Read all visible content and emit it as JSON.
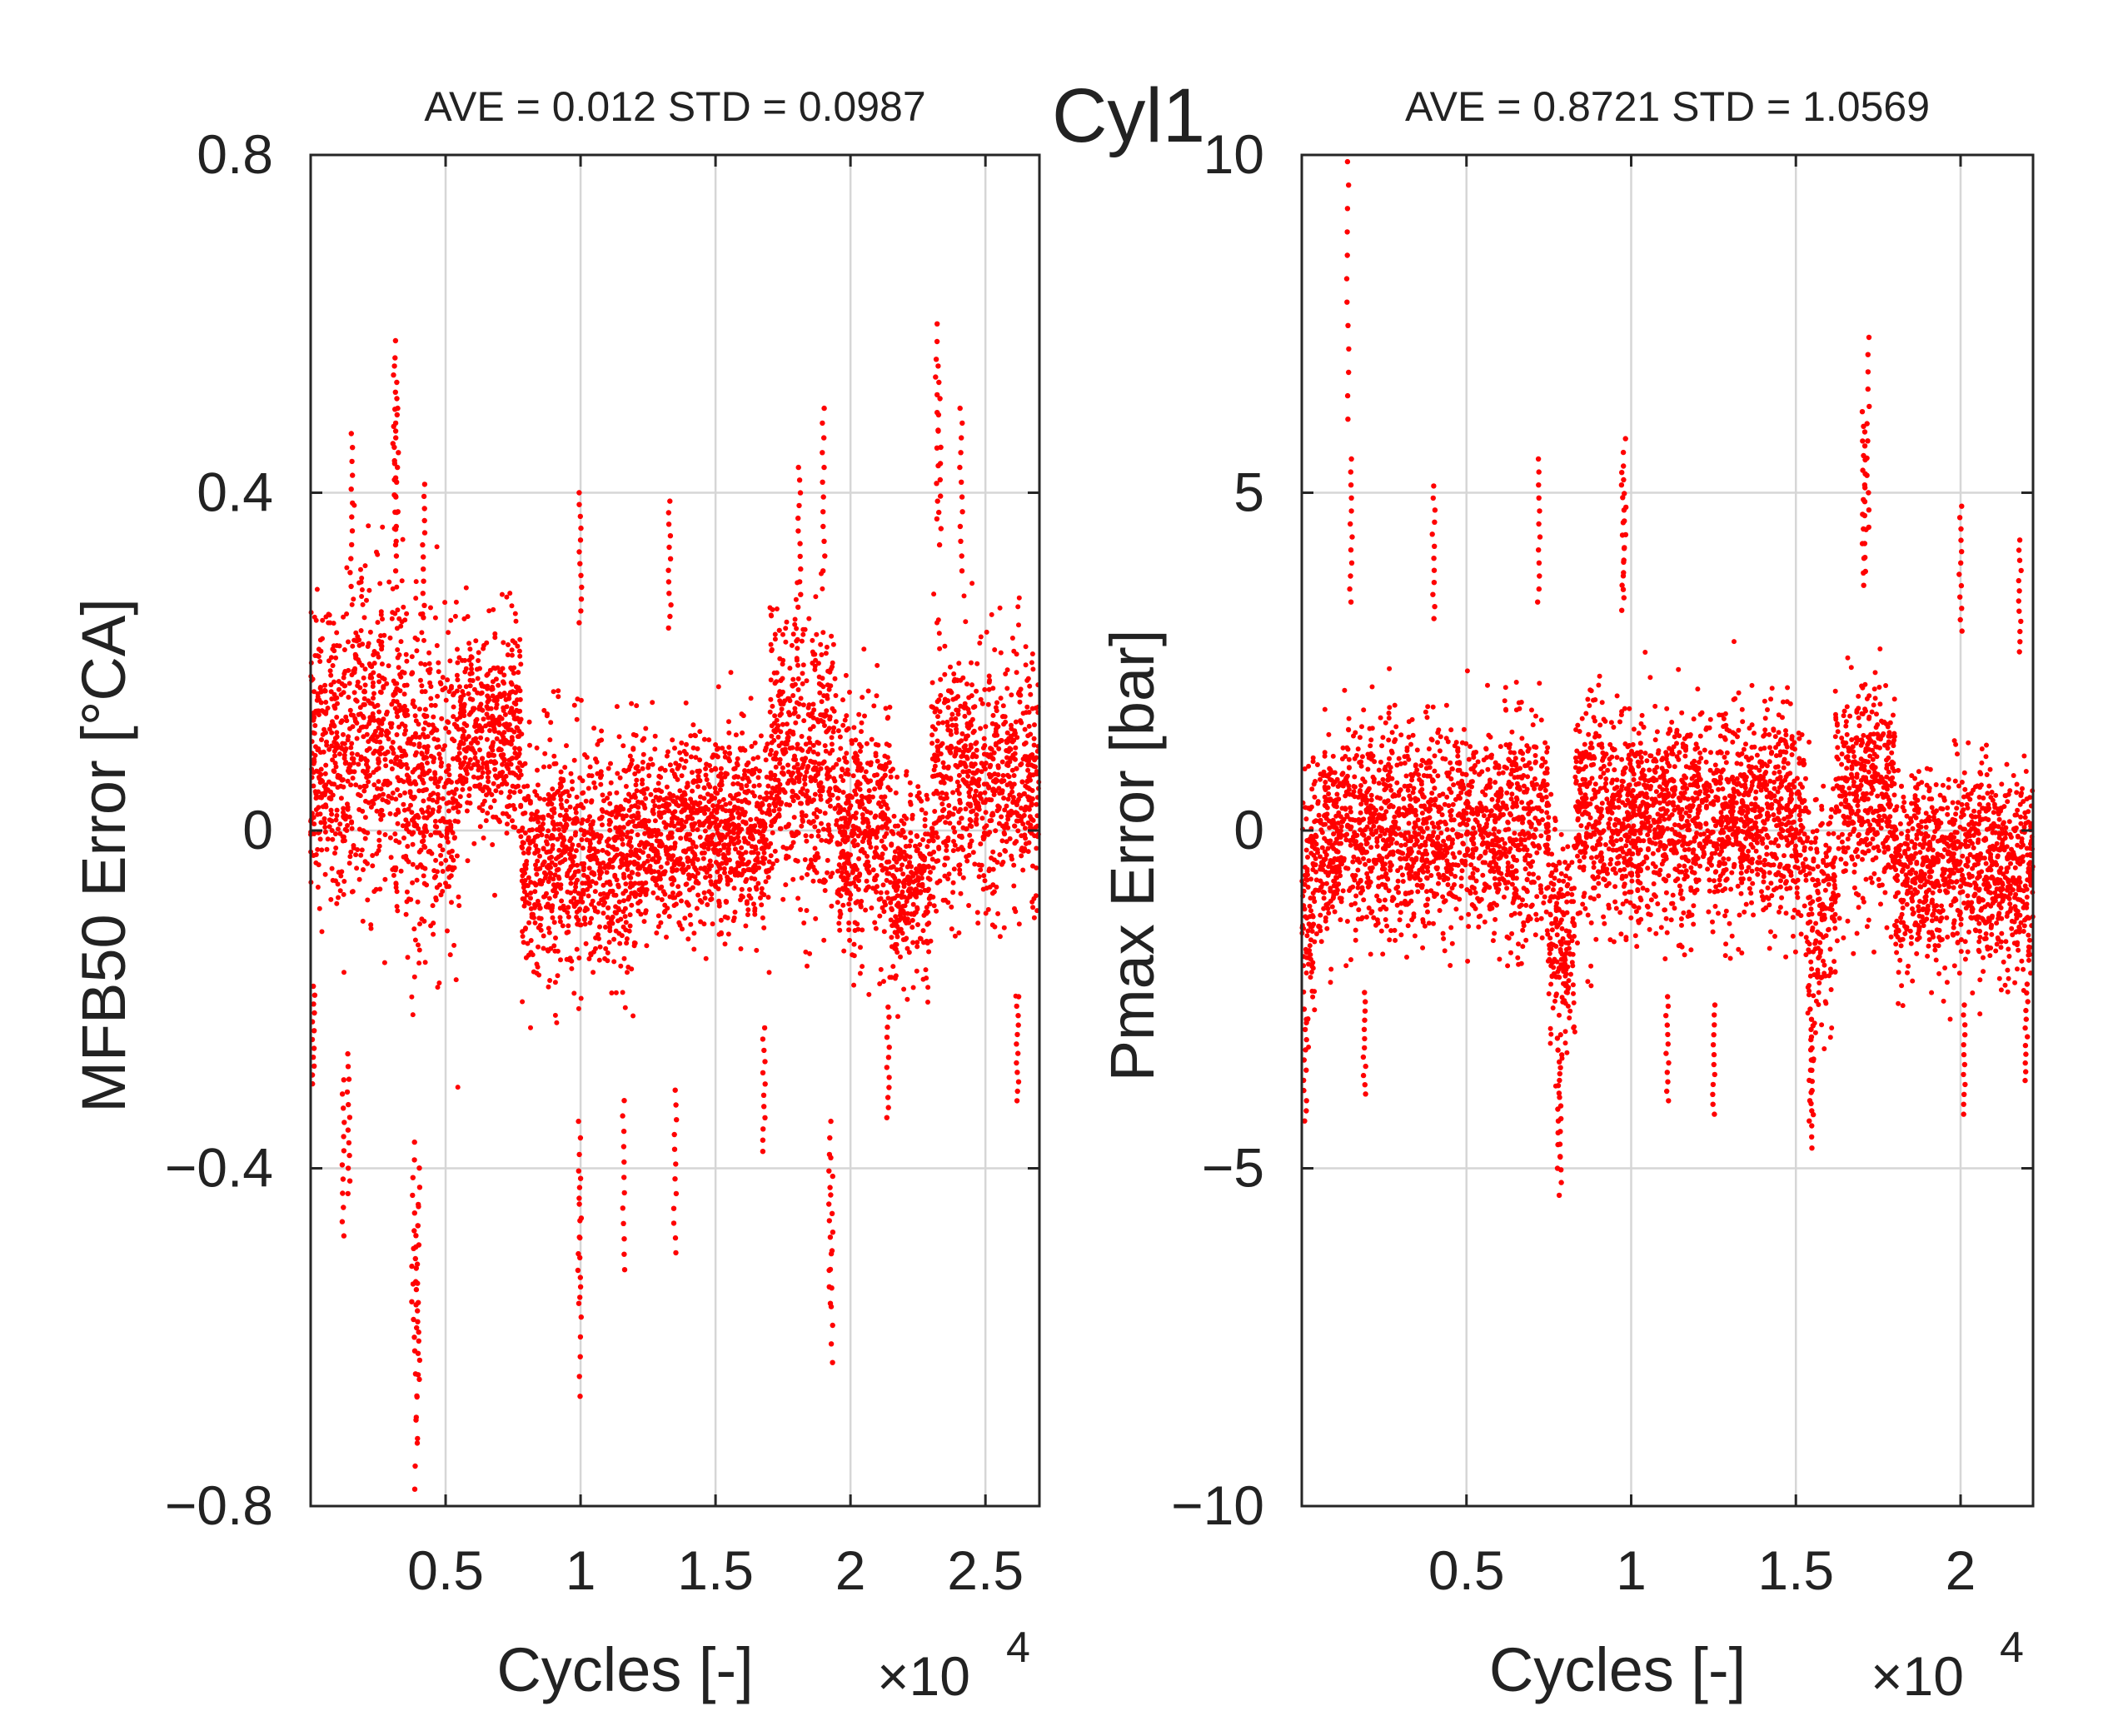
{
  "figure_title": "Cyl1",
  "colors": {
    "points": "#ff0000",
    "axes": "#262626",
    "grid": "#d6d6d6",
    "text": "#222222"
  },
  "chart_data": [
    {
      "type": "scatter",
      "title": "AVE = 0.012 STD = 0.0987",
      "xlabel": "Cycles [-]",
      "ylabel": "MFB50 Error [°CA]",
      "x_exponent": "×10",
      "x_exponent_power": "4",
      "xlim": [
        0,
        27000
      ],
      "ylim": [
        -0.8,
        0.8
      ],
      "xticks": [
        5000,
        10000,
        15000,
        20000,
        25000
      ],
      "xtick_labels": [
        "0.5",
        "1",
        "1.5",
        "2",
        "2.5"
      ],
      "yticks": [
        -0.8,
        -0.4,
        0,
        0.4,
        0.8
      ],
      "ytick_labels": [
        "−0.8",
        "−0.4",
        "0",
        "0.4",
        "0.8"
      ],
      "grid": true,
      "n_cycles": 27000,
      "mean": 0.012,
      "std": 0.0987,
      "segments": [
        {
          "x0": 0,
          "x1": 1500,
          "center": 0.08,
          "spread": 0.12
        },
        {
          "x0": 1500,
          "x1": 3500,
          "center": 0.11,
          "spread": 0.14
        },
        {
          "x0": 3500,
          "x1": 5500,
          "center": 0.05,
          "spread": 0.14
        },
        {
          "x0": 5500,
          "x1": 7800,
          "center": 0.12,
          "spread": 0.08
        },
        {
          "x0": 7800,
          "x1": 12000,
          "center": -0.03,
          "spread": 0.1
        },
        {
          "x0": 12000,
          "x1": 17000,
          "center": 0.0,
          "spread": 0.08
        },
        {
          "x0": 17000,
          "x1": 19500,
          "center": 0.08,
          "spread": 0.12
        },
        {
          "x0": 19500,
          "x1": 21500,
          "center": 0.0,
          "spread": 0.1
        },
        {
          "x0": 21500,
          "x1": 23000,
          "center": -0.06,
          "spread": 0.08
        },
        {
          "x0": 23000,
          "x1": 27000,
          "center": 0.06,
          "spread": 0.11
        }
      ],
      "extreme_points": [
        {
          "x": 3100,
          "y": 0.58
        },
        {
          "x": 3150,
          "y": 0.55
        },
        {
          "x": 3200,
          "y": 0.5
        },
        {
          "x": 1500,
          "y": 0.47
        },
        {
          "x": 23200,
          "y": 0.6
        },
        {
          "x": 23300,
          "y": 0.55
        },
        {
          "x": 19000,
          "y": 0.5
        },
        {
          "x": 24100,
          "y": 0.5
        },
        {
          "x": 10000,
          "y": 0.4
        },
        {
          "x": 13300,
          "y": 0.39
        },
        {
          "x": 18100,
          "y": 0.43
        },
        {
          "x": 4200,
          "y": 0.41
        },
        {
          "x": 3900,
          "y": -0.78
        },
        {
          "x": 3950,
          "y": -0.72
        },
        {
          "x": 3800,
          "y": -0.6
        },
        {
          "x": 4000,
          "y": -0.65
        },
        {
          "x": 10000,
          "y": -0.67
        },
        {
          "x": 9950,
          "y": -0.56
        },
        {
          "x": 19300,
          "y": -0.63
        },
        {
          "x": 19250,
          "y": -0.56
        },
        {
          "x": 11600,
          "y": -0.52
        },
        {
          "x": 13500,
          "y": -0.5
        },
        {
          "x": 1200,
          "y": -0.48
        },
        {
          "x": 1400,
          "y": -0.43
        },
        {
          "x": 100,
          "y": -0.3
        },
        {
          "x": 21400,
          "y": -0.34
        },
        {
          "x": 16800,
          "y": -0.38
        },
        {
          "x": 26200,
          "y": -0.32
        }
      ]
    },
    {
      "type": "scatter",
      "title": "AVE = 0.8721 STD = 1.0569",
      "xlabel": "Cycles [-]",
      "ylabel": "Pmax Error [bar]",
      "x_exponent": "×10",
      "x_exponent_power": "4",
      "xlim": [
        0,
        22200
      ],
      "ylim": [
        -10,
        10
      ],
      "xticks": [
        5000,
        10000,
        15000,
        20000
      ],
      "xtick_labels": [
        "0.5",
        "1",
        "1.5",
        "2"
      ],
      "yticks": [
        -10,
        -5,
        0,
        5,
        10
      ],
      "ytick_labels": [
        "−10",
        "−5",
        "0",
        "5",
        "10"
      ],
      "grid": true,
      "n_cycles": 22200,
      "mean": 0.8721,
      "std": 1.0569,
      "segments": [
        {
          "x0": 0,
          "x1": 400,
          "center": -1.0,
          "spread": 1.3
        },
        {
          "x0": 400,
          "x1": 7500,
          "center": 0.0,
          "spread": 1.1
        },
        {
          "x0": 7500,
          "x1": 8300,
          "center": -1.6,
          "spread": 1.2
        },
        {
          "x0": 8300,
          "x1": 15300,
          "center": 0.2,
          "spread": 1.1
        },
        {
          "x0": 15300,
          "x1": 16200,
          "center": -1.3,
          "spread": 1.2
        },
        {
          "x0": 16200,
          "x1": 18000,
          "center": 0.5,
          "spread": 1.2
        },
        {
          "x0": 18000,
          "x1": 22200,
          "center": -0.6,
          "spread": 1.0
        }
      ],
      "extreme_points": [
        {
          "x": 1400,
          "y": 9.9
        },
        {
          "x": 17200,
          "y": 7.3
        },
        {
          "x": 17050,
          "y": 6.2
        },
        {
          "x": 17100,
          "y": 5.9
        },
        {
          "x": 9800,
          "y": 5.8
        },
        {
          "x": 9750,
          "y": 5.3
        },
        {
          "x": 1500,
          "y": 5.5
        },
        {
          "x": 7200,
          "y": 5.5
        },
        {
          "x": 4000,
          "y": 5.1
        },
        {
          "x": 20000,
          "y": 4.8
        },
        {
          "x": 21800,
          "y": 4.3
        },
        {
          "x": 7850,
          "y": -5.4
        },
        {
          "x": 7800,
          "y": -5.0
        },
        {
          "x": 15500,
          "y": -4.7
        },
        {
          "x": 15450,
          "y": -4.3
        },
        {
          "x": 100,
          "y": -4.3
        },
        {
          "x": 20100,
          "y": -4.2
        },
        {
          "x": 12500,
          "y": -4.2
        },
        {
          "x": 11100,
          "y": -4.0
        },
        {
          "x": 1900,
          "y": -3.9
        },
        {
          "x": 22000,
          "y": -3.7
        }
      ]
    }
  ]
}
